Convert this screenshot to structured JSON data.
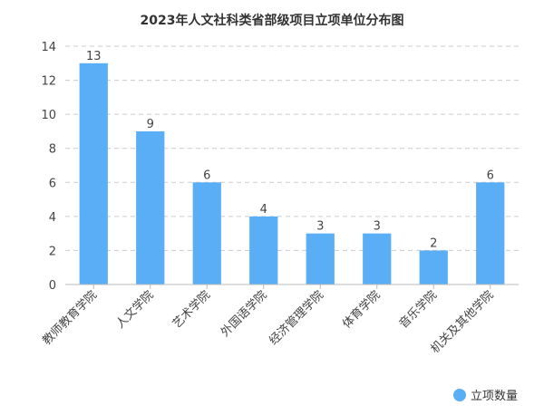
{
  "chart_data": {
    "type": "bar",
    "title": "2023年人文社科类省部级项目立项单位分布图",
    "categories": [
      "教师教育学院",
      "人文学院",
      "艺术学院",
      "外国语学院",
      "经济管理学院",
      "体育学院",
      "音乐学院",
      "机关及其他学院"
    ],
    "series": [
      {
        "name": "立项数量",
        "values": [
          13,
          9,
          6,
          4,
          3,
          3,
          2,
          6
        ],
        "color": "#5aaef5"
      }
    ],
    "ylim": [
      0,
      14
    ],
    "yticks": [
      0,
      2,
      4,
      6,
      8,
      10,
      12,
      14
    ],
    "grid": true,
    "legend": "bottom-right",
    "data_labels": true
  }
}
